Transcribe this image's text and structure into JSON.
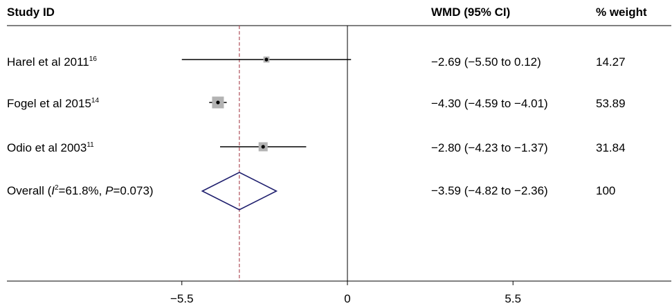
{
  "chart_data": {
    "type": "forest",
    "headers": {
      "study": "Study ID",
      "effect": "WMD (95% CI)",
      "weight": "% weight"
    },
    "studies": [
      {
        "label": "Harel et al 2011",
        "ref": "16",
        "est": -2.69,
        "lo": -5.5,
        "hi": 0.12,
        "ci_text": "−2.69 (−5.50 to 0.12)",
        "weight": 14.27,
        "weight_text": "14.27"
      },
      {
        "label": "Fogel et al 2015",
        "ref": "14",
        "est": -4.3,
        "lo": -4.59,
        "hi": -4.01,
        "ci_text": "−4.30 (−4.59 to −4.01)",
        "weight": 53.89,
        "weight_text": "53.89"
      },
      {
        "label": "Odio et al 2003",
        "ref": "11",
        "est": -2.8,
        "lo": -4.23,
        "hi": -1.37,
        "ci_text": "−2.80 (−4.23 to −1.37)",
        "weight": 31.84,
        "weight_text": "31.84"
      }
    ],
    "overall": {
      "label_parts": [
        "Overall (",
        "I",
        "2",
        "=61.8%, ",
        "P",
        "=0.073)"
      ],
      "est": -3.59,
      "lo": -4.82,
      "hi": -2.36,
      "ci_text": "−3.59 (−4.82 to −2.36)",
      "weight_text": "100"
    },
    "x_ticks": [
      {
        "value": -5.5,
        "label": "−5.5"
      },
      {
        "value": 0,
        "label": "0"
      },
      {
        "value": 5.5,
        "label": "5.5"
      }
    ],
    "xlim": [
      -11.6,
      11.6
    ],
    "null_line": 0,
    "colors": {
      "line": "#000000",
      "box": "#b3b3b3",
      "diamond": "#1f1f6e",
      "overall_line": "#b0505a"
    }
  }
}
